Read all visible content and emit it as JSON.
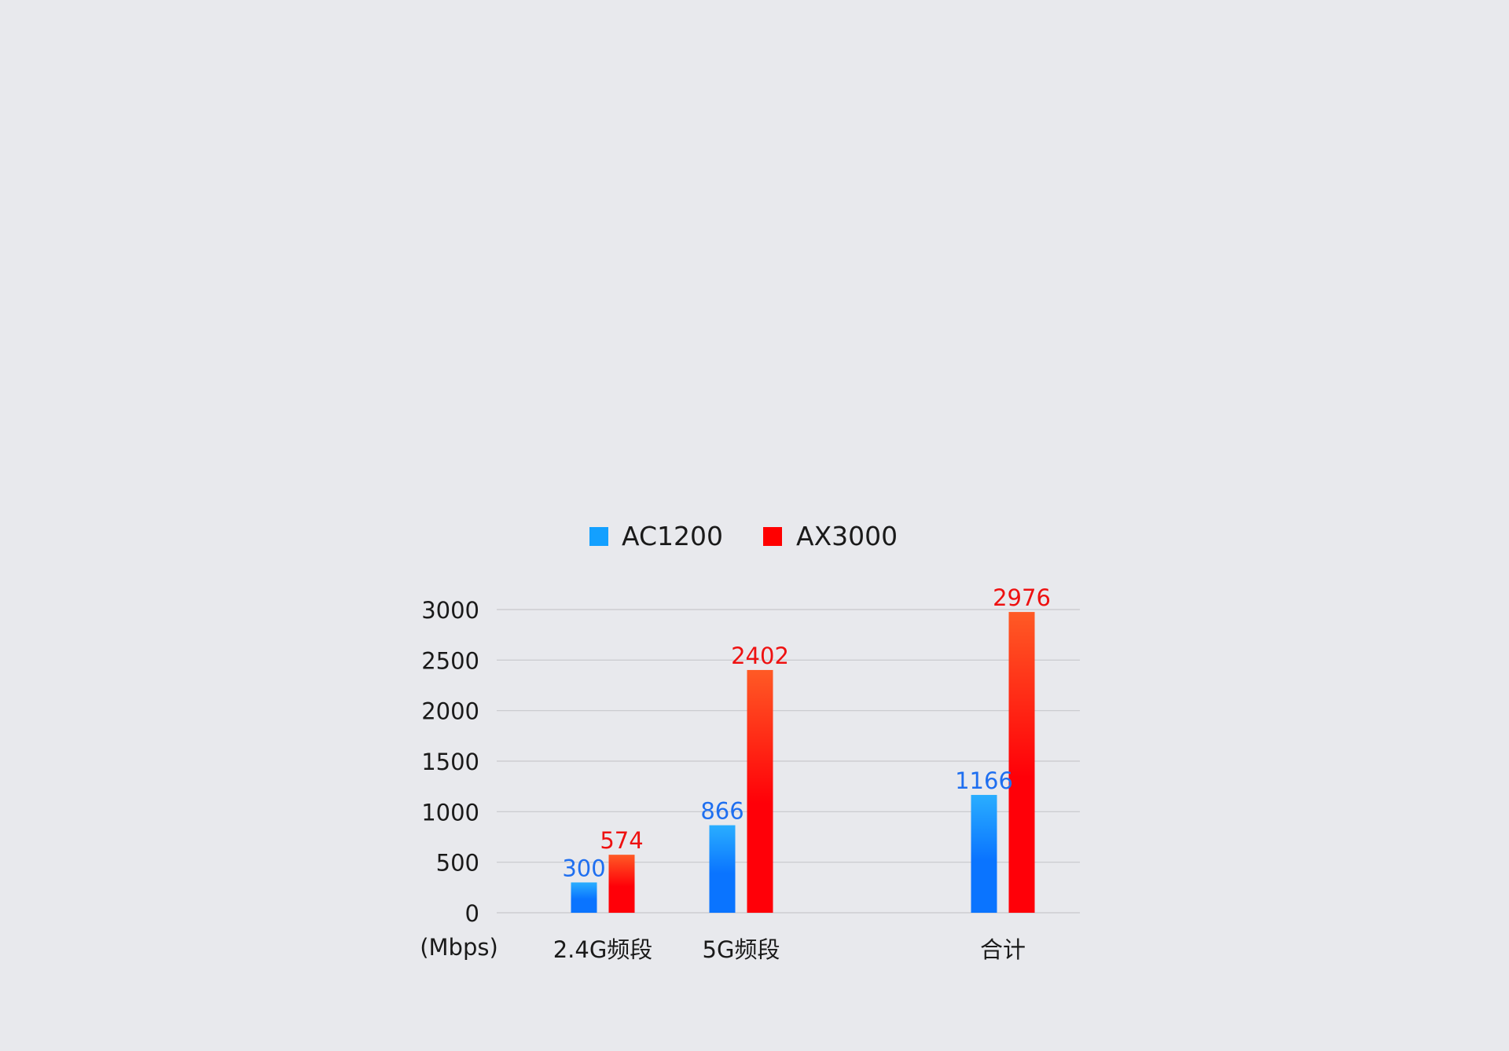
{
  "chart_data": {
    "type": "bar",
    "categories": [
      "2.4G频段",
      "5G频段",
      "合计"
    ],
    "series": [
      {
        "name": "AC1200",
        "values": [
          300,
          866,
          1166
        ],
        "color": "#0a74ff",
        "color_top": "#2aaeff",
        "label_color": "#1f6ff0"
      },
      {
        "name": "AX3000",
        "values": [
          574,
          2402,
          2976
        ],
        "color": "#ff0008",
        "color_top": "#ff5a25",
        "label_color": "#ee1111"
      }
    ],
    "y_tick_labels": [
      "0",
      "500",
      "1000",
      "1500",
      "2000",
      "2500",
      "3000"
    ],
    "ylim": [
      0,
      3000
    ],
    "yunit_label": "(Mbps)",
    "grid": true,
    "legend_placement": "top-center",
    "legend_swatch_colors": [
      "#13a0ff",
      "#ff0000"
    ]
  }
}
